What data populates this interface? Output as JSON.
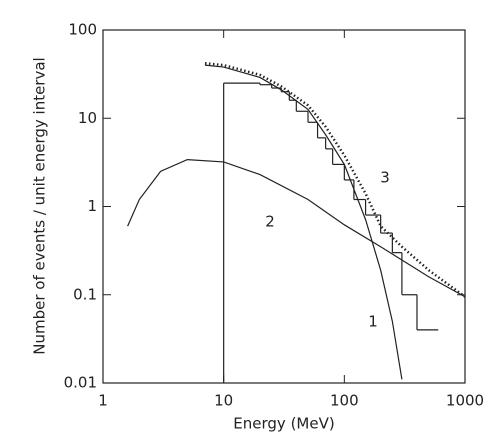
{
  "chart_data": {
    "type": "line",
    "xlabel": "Energy (MeV)",
    "ylabel": "Number of events / unit energy interval",
    "xscale": "log",
    "yscale": "log",
    "xlim": [
      1,
      1000
    ],
    "ylim": [
      0.01,
      100
    ],
    "xticks": [
      1,
      10,
      100,
      1000
    ],
    "yticks": [
      0.01,
      0.1,
      1,
      10,
      100
    ],
    "series": [
      {
        "name": "1",
        "color": "#222",
        "style": "solid",
        "x": [
          7,
          10,
          20,
          30,
          50,
          70,
          100,
          150,
          200,
          250,
          300
        ],
        "values": [
          40,
          38,
          29,
          21,
          12.6,
          6.5,
          3,
          0.71,
          0.19,
          0.05,
          0.011
        ]
      },
      {
        "name": "2",
        "color": "#222",
        "style": "solid",
        "x": [
          1.6,
          2,
          3,
          5,
          10,
          20,
          50,
          100,
          200,
          500,
          1000
        ],
        "values": [
          0.6,
          1.2,
          2.5,
          3.4,
          3.2,
          2.3,
          1.2,
          0.62,
          0.35,
          0.16,
          0.095
        ]
      },
      {
        "name": "3",
        "color": "#222",
        "style": "dotted",
        "x": [
          7,
          10,
          20,
          30,
          50,
          70,
          100,
          150,
          200,
          300,
          500,
          1000
        ],
        "values": [
          42,
          40,
          31,
          23,
          14,
          8,
          3.8,
          1.4,
          0.6,
          0.35,
          0.19,
          0.095
        ]
      }
    ],
    "histogram": {
      "color": "#222",
      "bins": [
        10,
        20,
        25,
        30,
        35,
        40,
        50,
        60,
        70,
        80,
        100,
        120,
        150,
        200,
        250,
        300,
        400,
        600
      ],
      "counts": [
        25,
        24,
        22,
        20,
        16,
        12,
        9,
        6,
        4.5,
        3,
        2,
        1.2,
        0.8,
        0.5,
        0.3,
        0.1,
        0.04
      ]
    }
  }
}
